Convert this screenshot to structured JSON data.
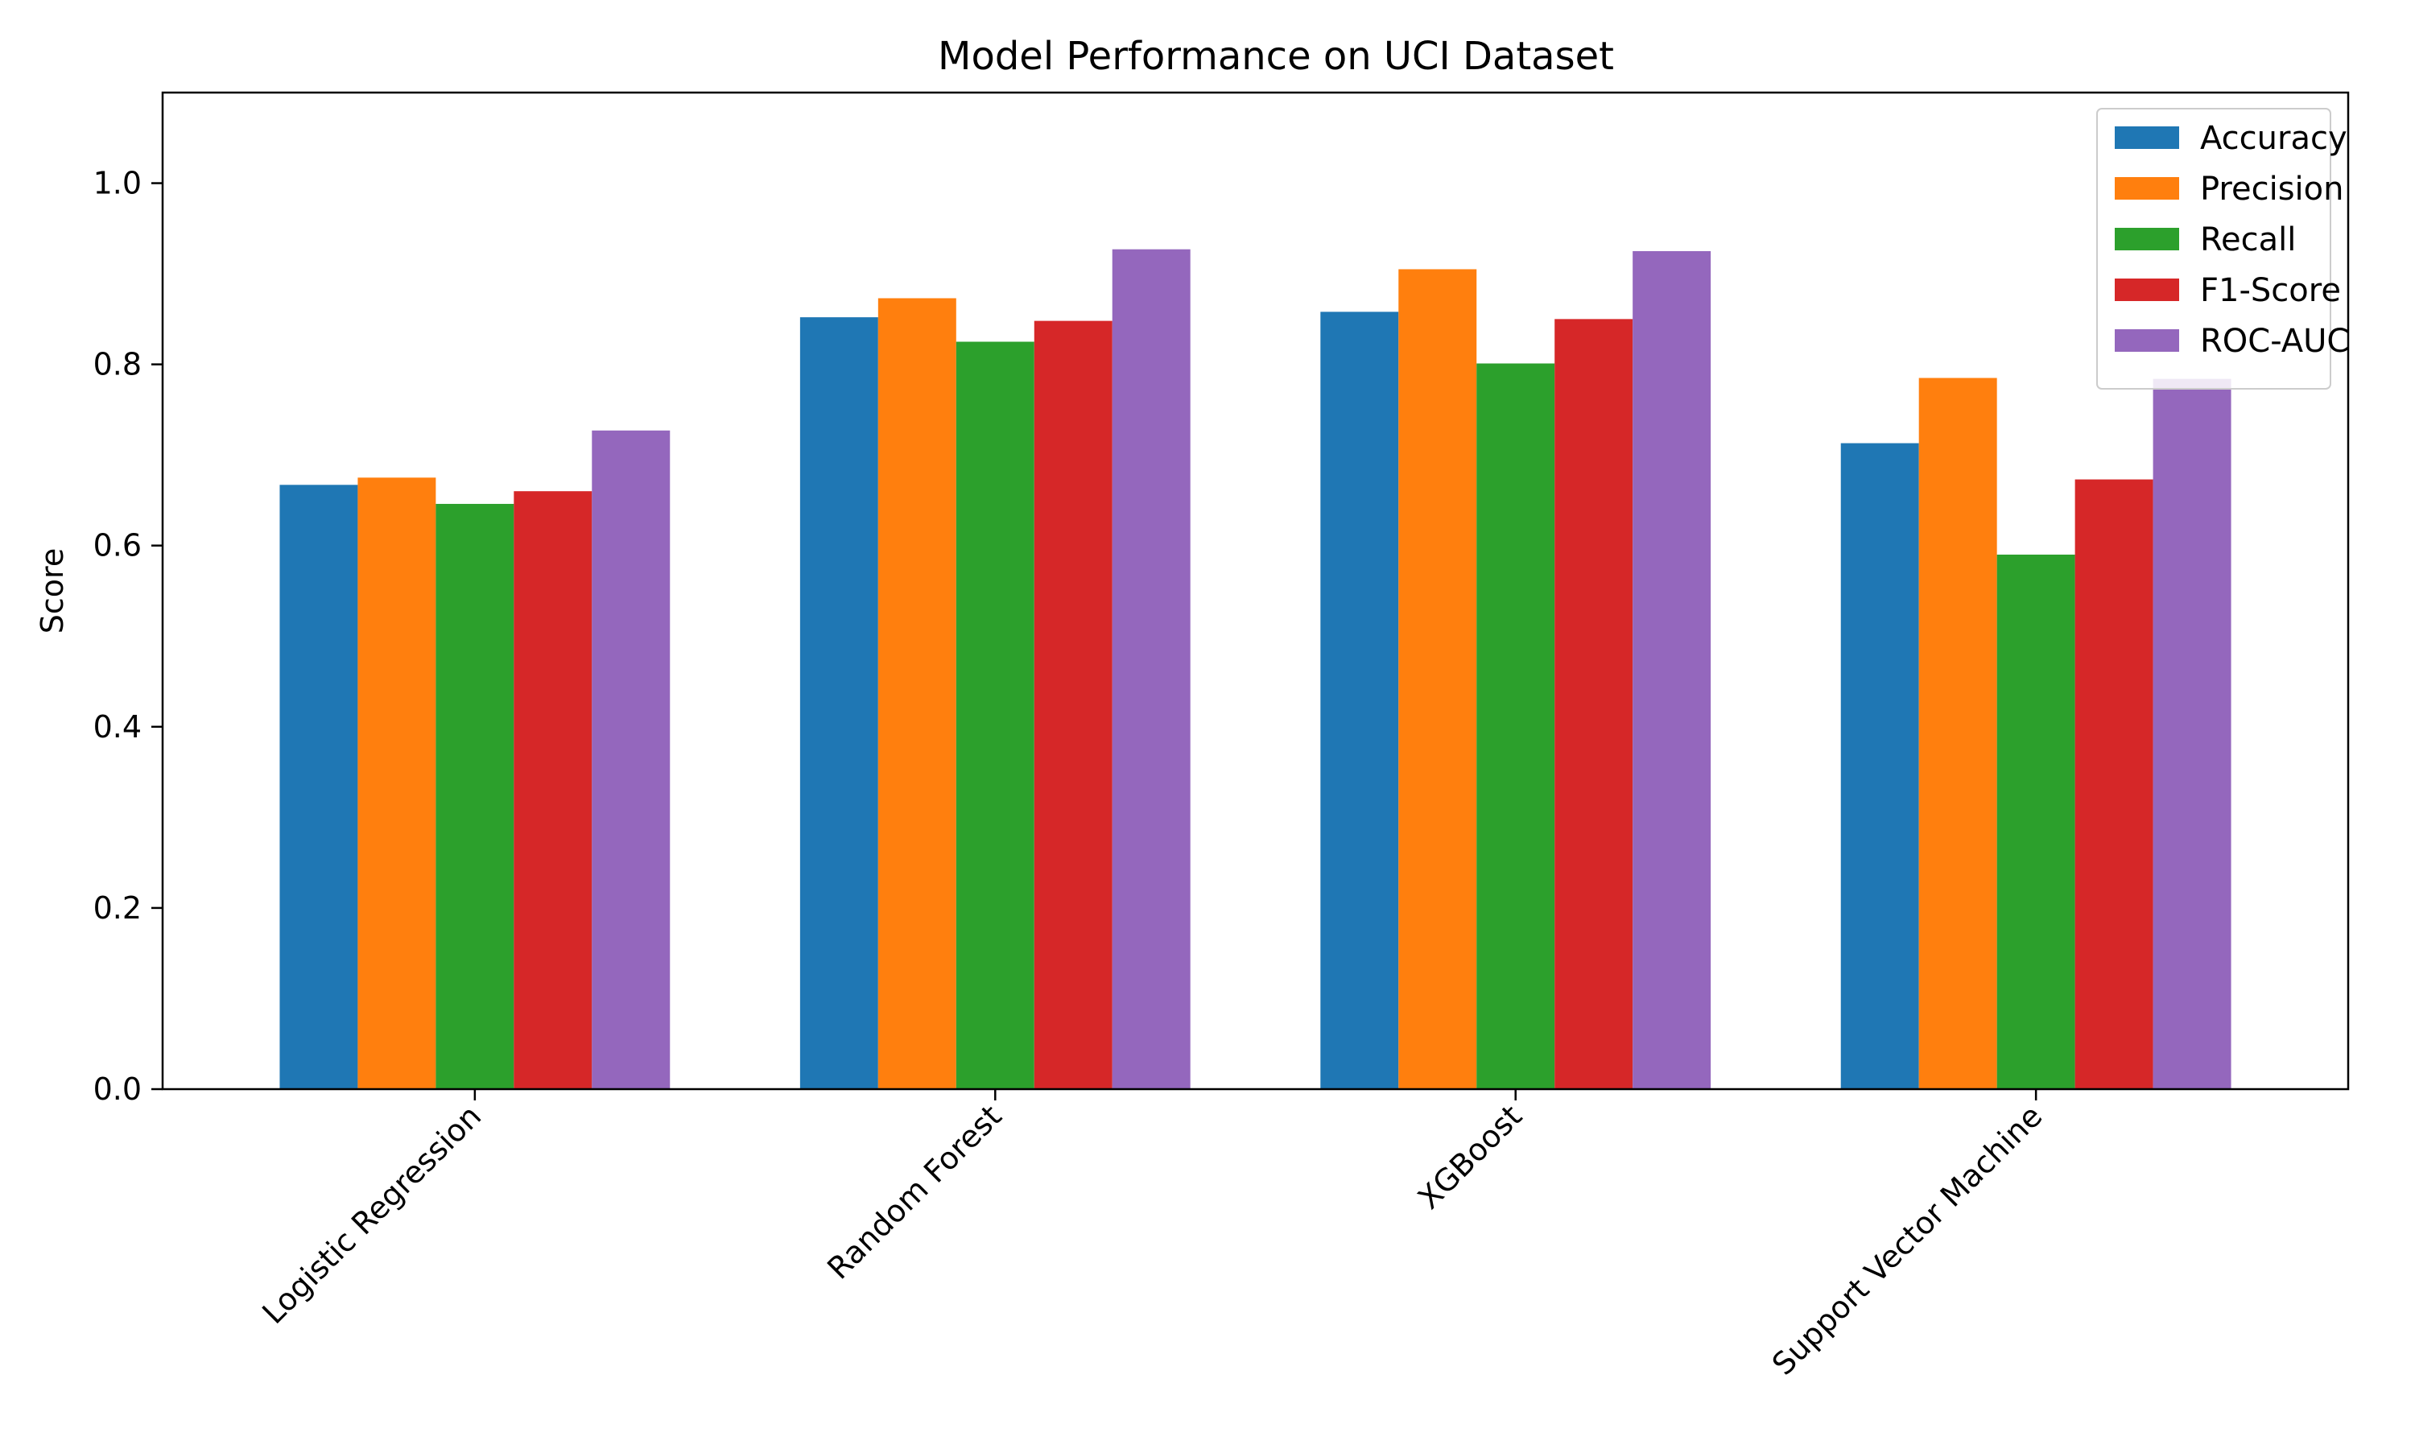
{
  "chart_data": {
    "type": "bar",
    "title": "Model Performance on UCI Dataset",
    "xlabel": "",
    "ylabel": "Score",
    "ylim": [
      0,
      1.1
    ],
    "yticks": [
      0.0,
      0.2,
      0.4,
      0.6,
      0.8,
      1.0
    ],
    "ytick_labels": [
      "0.0",
      "0.2",
      "0.4",
      "0.6",
      "0.8",
      "1.0"
    ],
    "grid": false,
    "legend_position": "top-right",
    "categories": [
      "Logistic Regression",
      "Random Forest",
      "XGBoost",
      "Support Vector Machine"
    ],
    "series": [
      {
        "name": "Accuracy",
        "color": "#1f77b4",
        "values": [
          0.667,
          0.852,
          0.858,
          0.713
        ]
      },
      {
        "name": "Precision",
        "color": "#ff7f0e",
        "values": [
          0.675,
          0.873,
          0.905,
          0.785
        ]
      },
      {
        "name": "Recall",
        "color": "#2ca02c",
        "values": [
          0.646,
          0.825,
          0.801,
          0.59
        ]
      },
      {
        "name": "F1-Score",
        "color": "#d62728",
        "values": [
          0.66,
          0.848,
          0.85,
          0.673
        ]
      },
      {
        "name": "ROC-AUC",
        "color": "#9467bd",
        "values": [
          0.727,
          0.927,
          0.925,
          0.784
        ]
      }
    ]
  }
}
